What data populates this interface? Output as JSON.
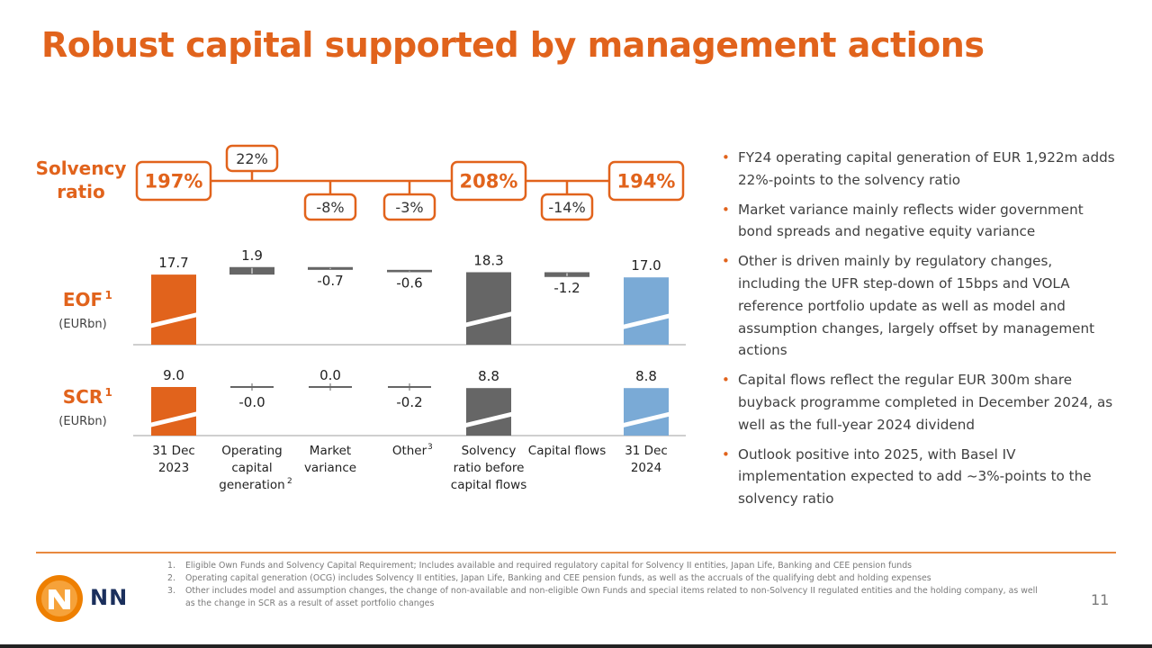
{
  "title": "Robust capital supported by management actions",
  "chart_data": {
    "type": "bar",
    "subtype": "waterfall",
    "categories": [
      [
        "31 Dec",
        "2023"
      ],
      [
        "Operating",
        "capital",
        "generation"
      ],
      [
        "Market",
        "variance"
      ],
      [
        "Other"
      ],
      [
        "Solvency",
        "ratio before",
        "capital flows"
      ],
      [
        "Capital flows"
      ],
      [
        "31 Dec",
        "2024"
      ]
    ],
    "category_superscripts": [
      "",
      "2",
      "",
      "3",
      "",
      "",
      ""
    ],
    "bar_kinds": [
      "total",
      "delta",
      "delta",
      "delta",
      "total",
      "delta",
      "total"
    ],
    "solvency_ratio": {
      "label": [
        "Solvency",
        "ratio"
      ],
      "values": [
        "197%",
        "22%",
        "-8%",
        "-3%",
        "208%",
        "-14%",
        "194%"
      ],
      "emphasis": [
        true,
        false,
        false,
        false,
        true,
        false,
        true
      ]
    },
    "eof": {
      "label": "EOF",
      "label_sup": "1",
      "unit": "(EURbn)",
      "values": [
        17.7,
        1.9,
        -0.7,
        -0.6,
        18.3,
        -1.2,
        17.0
      ],
      "value_labels": [
        "17.7",
        "1.9",
        "-0.7",
        "-0.6",
        "18.3",
        "-1.2",
        "17.0"
      ]
    },
    "scr": {
      "label": "SCR",
      "label_sup": "1",
      "unit": "(EURbn)",
      "values": [
        9.0,
        0.0,
        0.0,
        -0.2,
        8.8,
        null,
        8.8
      ],
      "value_labels": [
        "9.0",
        "-0.0",
        "0.0",
        "-0.2",
        "8.8",
        "",
        "8.8"
      ]
    },
    "colors": {
      "orange": "#e1631c",
      "grey": "#666666",
      "blue": "#7aaad6",
      "axis": "#bfbfbf",
      "label_blue": "#e1631c"
    }
  },
  "bullets": [
    "FY24 operating capital generation of EUR 1,922m adds 22%-points to the solvency ratio",
    "Market variance mainly reflects wider government bond spreads and negative equity variance",
    "Other is driven mainly by regulatory changes, including the UFR step-down of 15bps and VOLA reference portfolio update as well as model and assumption changes, largely offset by management actions",
    "Capital flows reflect the regular EUR 300m share buyback programme completed in December 2024, as well as the full-year 2024 dividend",
    "Outlook positive into 2025, with Basel IV implementation expected to add ~3%-points to the solvency ratio"
  ],
  "footnotes": [
    {
      "num": "1.",
      "text": "Eligible Own Funds and Solvency Capital Requirement; Includes available and required regulatory capital for Solvency II entities, Japan Life, Banking and CEE pension funds"
    },
    {
      "num": "2.",
      "text": "Operating capital generation (OCG) includes Solvency II entities, Japan Life, Banking and CEE pension funds, as well as the accruals of the qualifying debt and holding expenses"
    },
    {
      "num": "3.",
      "text": "Other includes model and assumption changes, the change of non-available and non-eligible Own Funds and special items related to non-Solvency II regulated entities and the holding company, as well as the change in SCR as a result of asset portfolio changes"
    }
  ],
  "logo_text": "NN",
  "page_number": "11"
}
